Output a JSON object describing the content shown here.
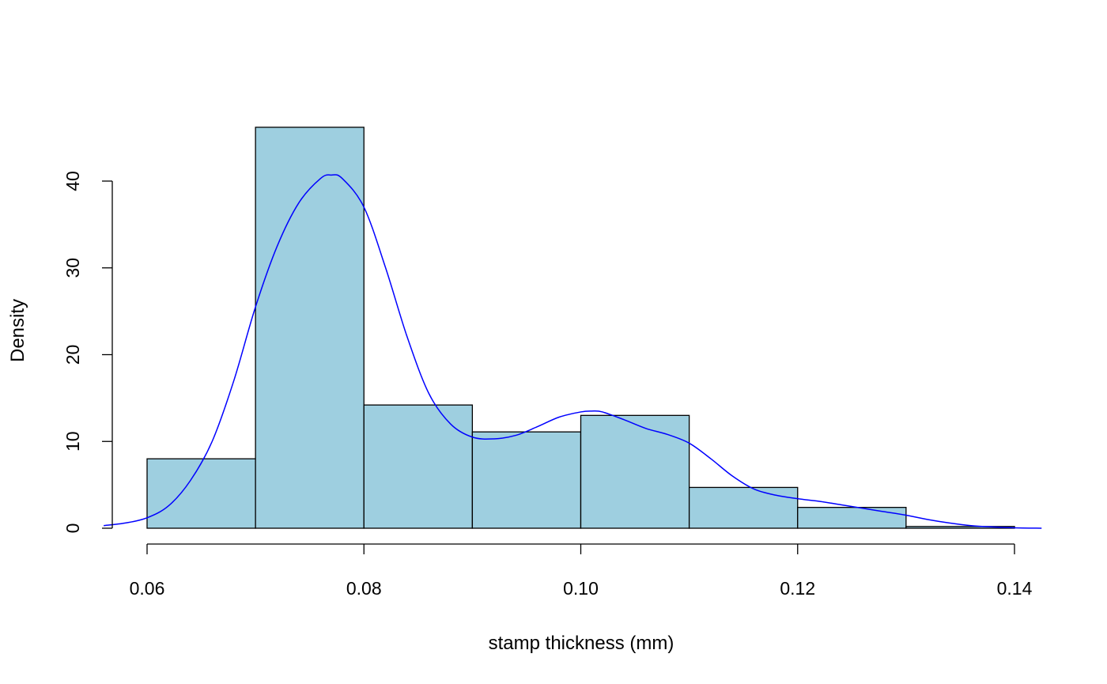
{
  "chart_data": {
    "type": "bar",
    "subtype": "histogram",
    "title": "",
    "xlabel": "stamp thickness (mm)",
    "ylabel": "Density",
    "bins": [
      {
        "x0": 0.06,
        "x1": 0.07,
        "value": 8.0
      },
      {
        "x0": 0.07,
        "x1": 0.08,
        "value": 46.2
      },
      {
        "x0": 0.08,
        "x1": 0.09,
        "value": 14.2
      },
      {
        "x0": 0.09,
        "x1": 0.1,
        "value": 11.1
      },
      {
        "x0": 0.1,
        "x1": 0.11,
        "value": 13.0
      },
      {
        "x0": 0.11,
        "x1": 0.12,
        "value": 4.7
      },
      {
        "x0": 0.12,
        "x1": 0.13,
        "value": 2.4
      },
      {
        "x0": 0.13,
        "x1": 0.14,
        "value": 0.2
      }
    ],
    "density_curve": {
      "x": [
        0.056,
        0.058,
        0.06,
        0.062,
        0.064,
        0.066,
        0.068,
        0.07,
        0.072,
        0.074,
        0.076,
        0.077,
        0.078,
        0.08,
        0.082,
        0.084,
        0.086,
        0.088,
        0.09,
        0.092,
        0.094,
        0.096,
        0.098,
        0.1,
        0.101,
        0.102,
        0.104,
        0.106,
        0.108,
        0.11,
        0.112,
        0.114,
        0.116,
        0.118,
        0.12,
        0.122,
        0.124,
        0.126,
        0.128,
        0.13,
        0.132,
        0.134,
        0.136,
        0.138,
        0.14,
        0.1425
      ],
      "y": [
        0.3,
        0.6,
        1.2,
        2.6,
        5.5,
        10.0,
        17.0,
        25.5,
        32.5,
        37.5,
        40.3,
        40.7,
        40.3,
        37.0,
        30.0,
        22.0,
        15.5,
        12.0,
        10.5,
        10.3,
        10.7,
        11.7,
        12.8,
        13.4,
        13.5,
        13.4,
        12.5,
        11.5,
        10.8,
        9.8,
        8.0,
        6.0,
        4.5,
        3.8,
        3.4,
        3.1,
        2.7,
        2.3,
        1.9,
        1.5,
        1.0,
        0.6,
        0.3,
        0.15,
        0.05,
        0.0
      ]
    },
    "xlim": [
      0.056,
      0.1425
    ],
    "ylim": [
      0,
      46.2
    ],
    "x_ticks": [
      {
        "value": 0.06,
        "label": "0.06"
      },
      {
        "value": 0.08,
        "label": "0.08"
      },
      {
        "value": 0.1,
        "label": "0.10"
      },
      {
        "value": 0.12,
        "label": "0.12"
      },
      {
        "value": 0.14,
        "label": "0.14"
      }
    ],
    "y_ticks": [
      {
        "value": 0,
        "label": "0"
      },
      {
        "value": 10,
        "label": "10"
      },
      {
        "value": 20,
        "label": "20"
      },
      {
        "value": 30,
        "label": "30"
      },
      {
        "value": 40,
        "label": "40"
      }
    ],
    "grid": false,
    "colors": {
      "bar_fill": "#9ecfe0",
      "bar_stroke": "#000000",
      "curve": "#0000ff"
    }
  }
}
